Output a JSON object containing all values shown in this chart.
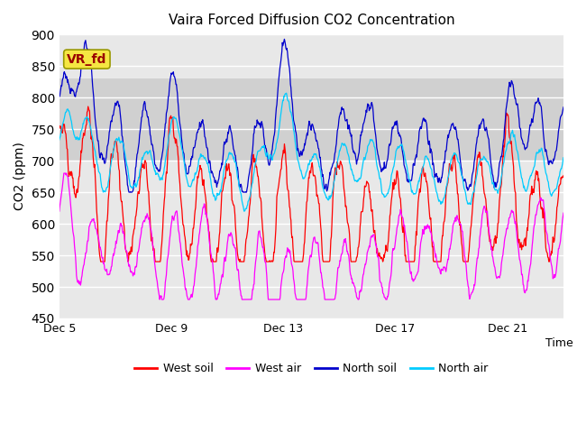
{
  "title": "Vaira Forced Diffusion CO2 Concentration",
  "xlabel": "Time",
  "ylabel": "CO2 (ppm)",
  "ylim": [
    450,
    900
  ],
  "yticks": [
    450,
    500,
    550,
    600,
    650,
    700,
    750,
    800,
    850,
    900
  ],
  "xtick_labels": [
    "Dec 5",
    "Dec 9",
    "Dec 13",
    "Dec 17",
    "Dec 21"
  ],
  "xtick_positions": [
    0,
    4,
    8,
    12,
    16
  ],
  "xlim": [
    0,
    18
  ],
  "colors": {
    "west_soil": "#ff0000",
    "west_air": "#ff00ff",
    "north_soil": "#0000cc",
    "north_air": "#00ccff"
  },
  "legend_entries": [
    "West soil",
    "West air",
    "North soil",
    "North air"
  ],
  "vr_fd_box_facecolor": "#f5e642",
  "vr_fd_text_color": "#990000",
  "plot_bgcolor": "#e8e8e8",
  "band_color": "#d0d0d0",
  "band_ymin": 700,
  "band_ymax": 830,
  "n_points": 1000,
  "seed": 7
}
